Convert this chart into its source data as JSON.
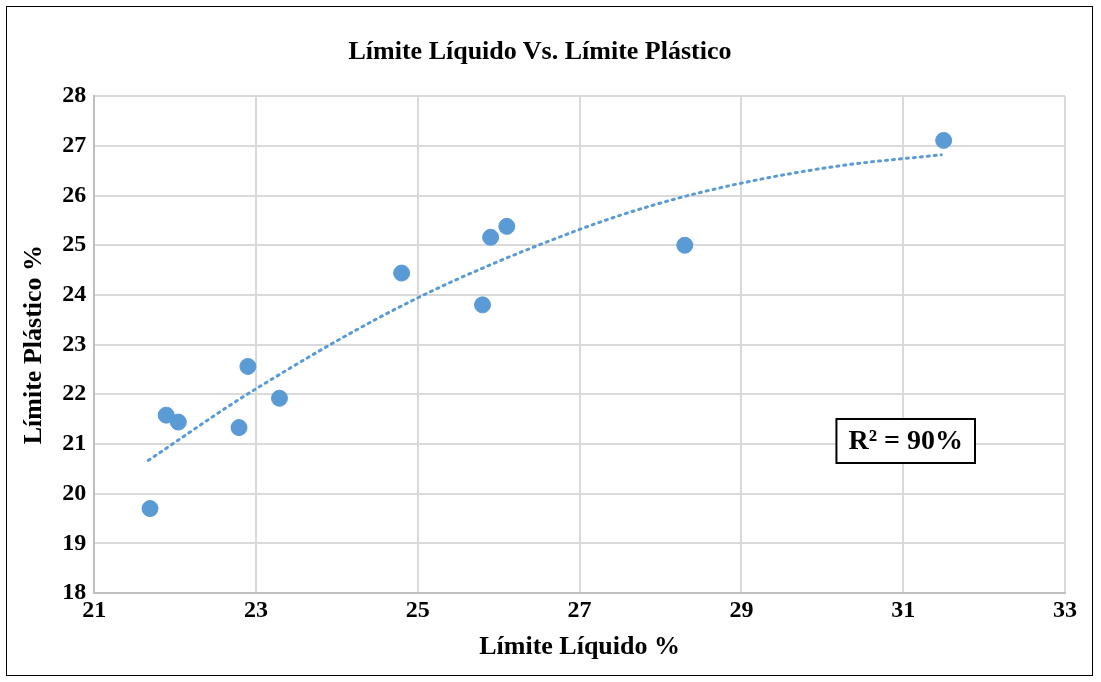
{
  "chart_data": {
    "type": "scatter",
    "title": "Límite Líquido Vs. Límite Plástico",
    "xlabel": "Límite Líquido %",
    "ylabel": "Límite Plástico %",
    "x": [
      21.69,
      21.89,
      22.04,
      22.79,
      22.9,
      23.29,
      24.8,
      25.8,
      25.9,
      26.1,
      28.3,
      31.5
    ],
    "series": [
      {
        "color": "#5b9bd5",
        "values": [
          19.7,
          21.58,
          21.44,
          21.33,
          22.56,
          21.92,
          24.44,
          23.8,
          25.16,
          25.38,
          25.0,
          27.11
        ]
      },
      {
        "type": "line",
        "color": "#5b9bd5",
        "line_style": "dotted",
        "marker": "none",
        "x": [
          21.67,
          22.95,
          24.96,
          26.97,
          27.98,
          29.0,
          30.22,
          31.47
        ],
        "values": [
          20.67,
          22.06,
          23.91,
          25.3,
          25.84,
          26.25,
          26.6,
          26.82
        ]
      }
    ],
    "xlim": [
      21,
      33
    ],
    "xticks": [
      21,
      23,
      25,
      27,
      29,
      31,
      33
    ],
    "ylim": [
      18,
      28
    ],
    "yticks": [
      18,
      19,
      20,
      21,
      22,
      23,
      24,
      25,
      26,
      27,
      28
    ],
    "grid": true,
    "legend": false,
    "marker": "circle",
    "annotations": [
      "R² = 90%"
    ]
  }
}
